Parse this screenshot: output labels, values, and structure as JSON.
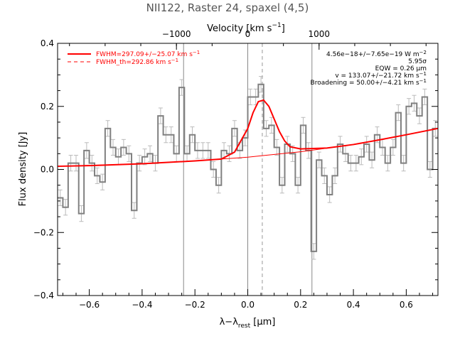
{
  "chart_data": {
    "type": "line",
    "title": "NII122, Raster 24, spaxel (4,5)",
    "xlabel": "λ−λrest [μm]",
    "xlabel_main": "λ−λ",
    "xlabel_sub": "rest",
    "xlabel_unit": " [μm]",
    "ylabel": "Flux density [Jy]",
    "top_xlabel": "Velocity [km s⁻¹]",
    "top_xlabel_main": "Velocity [km s",
    "top_xlabel_sup": "−1",
    "top_xlabel_end": "]",
    "xlim": [
      -0.72,
      0.72
    ],
    "ylim": [
      -0.4,
      0.4
    ],
    "x_ticks": [
      -0.6,
      -0.4,
      -0.2,
      0.0,
      0.2,
      0.4,
      0.6
    ],
    "x_tick_labels": [
      "−0.6",
      "−0.4",
      "−0.2",
      "0.0",
      "0.2",
      "0.4",
      "0.6"
    ],
    "y_ticks": [
      -0.4,
      -0.2,
      0.0,
      0.2,
      0.4
    ],
    "y_tick_labels": [
      "−0.4",
      "−0.2",
      "0.0",
      "0.2",
      "0.4"
    ],
    "top_ticks_wavelength": [
      -0.27,
      0.0,
      0.27
    ],
    "top_tick_labels": [
      "−1000",
      "0",
      "1000"
    ],
    "vertical_lines": {
      "solid": [
        -0.243,
        0.0,
        0.243
      ],
      "dashed": [
        0.055
      ]
    },
    "grid": false,
    "legend_position": "top-left",
    "legend": [
      {
        "label": "FWHM=297.09+/−25.07 km s",
        "sup": "−1",
        "style": "solid",
        "color": "#ff0000"
      },
      {
        "label": "FWHM_th=292.86 km s",
        "sup": "−1",
        "style": "dashed",
        "color": "#ff0000"
      }
    ],
    "annotations": [
      {
        "text": "4.56e−18+/−7.65e−19 W m",
        "sup": "−2"
      },
      {
        "text": "5.95σ",
        "sup": ""
      },
      {
        "text": "EQW = 0.26 μm",
        "sup": ""
      },
      {
        "text": "v = 133.07+/−21.72 km s",
        "sup": "−1"
      },
      {
        "text": "Broadening = 50.00+/−4.21 km s",
        "sup": "−1"
      }
    ],
    "series": [
      {
        "style": "histogram",
        "color": "#808080",
        "x": [
          -0.71,
          -0.69,
          -0.67,
          -0.65,
          -0.63,
          -0.61,
          -0.59,
          -0.57,
          -0.55,
          -0.53,
          -0.51,
          -0.49,
          -0.47,
          -0.45,
          -0.43,
          -0.41,
          -0.39,
          -0.37,
          -0.35,
          -0.33,
          -0.31,
          -0.29,
          -0.27,
          -0.25,
          -0.23,
          -0.21,
          -0.19,
          -0.17,
          -0.15,
          -0.13,
          -0.11,
          -0.09,
          -0.07,
          -0.05,
          -0.03,
          -0.01,
          0.01,
          0.03,
          0.05,
          0.07,
          0.09,
          0.11,
          0.13,
          0.15,
          0.17,
          0.19,
          0.21,
          0.23,
          0.25,
          0.27,
          0.29,
          0.31,
          0.33,
          0.35,
          0.37,
          0.39,
          0.41,
          0.43,
          0.45,
          0.47,
          0.49,
          0.51,
          0.53,
          0.55,
          0.57,
          0.59,
          0.61,
          0.63,
          0.65,
          0.67,
          0.69,
          0.71
        ],
        "values": [
          -0.09,
          -0.12,
          0.02,
          0.02,
          -0.14,
          0.06,
          0.02,
          -0.02,
          -0.04,
          0.13,
          0.07,
          0.04,
          0.07,
          0.05,
          -0.13,
          0.02,
          0.04,
          0.05,
          0.02,
          0.17,
          0.11,
          0.11,
          0.05,
          0.26,
          0.05,
          0.11,
          0.06,
          0.06,
          0.06,
          0.0,
          -0.05,
          0.06,
          0.05,
          0.13,
          0.06,
          0.1,
          0.23,
          0.23,
          0.27,
          0.13,
          0.14,
          0.07,
          -0.05,
          0.08,
          0.05,
          -0.05,
          0.14,
          0.06,
          -0.26,
          0.03,
          -0.02,
          -0.08,
          -0.02,
          0.08,
          0.05,
          0.02,
          0.02,
          0.04,
          0.08,
          0.03,
          0.11,
          0.07,
          0.02,
          0.07,
          0.18,
          0.02,
          0.2,
          0.21,
          0.17,
          0.23,
          0.0,
          0.13
        ],
        "error": 0.025
      },
      {
        "style": "line",
        "color": "#ff0000",
        "x": [
          -0.72,
          -0.6,
          -0.4,
          -0.2,
          -0.1,
          -0.05,
          0.0,
          0.02,
          0.04,
          0.06,
          0.08,
          0.1,
          0.12,
          0.14,
          0.16,
          0.2,
          0.3,
          0.4,
          0.5,
          0.6,
          0.72
        ],
        "values": [
          0.01,
          0.012,
          0.018,
          0.027,
          0.033,
          0.055,
          0.13,
          0.18,
          0.215,
          0.22,
          0.2,
          0.16,
          0.12,
          0.09,
          0.072,
          0.065,
          0.068,
          0.079,
          0.094,
          0.11,
          0.13
        ]
      },
      {
        "style": "thin-line",
        "color": "#ff0000",
        "x": [
          -0.72,
          -0.4,
          -0.2,
          0.0,
          0.2,
          0.4,
          0.6,
          0.72
        ],
        "values": [
          0.01,
          0.018,
          0.027,
          0.039,
          0.056,
          0.079,
          0.11,
          0.13
        ]
      }
    ]
  }
}
